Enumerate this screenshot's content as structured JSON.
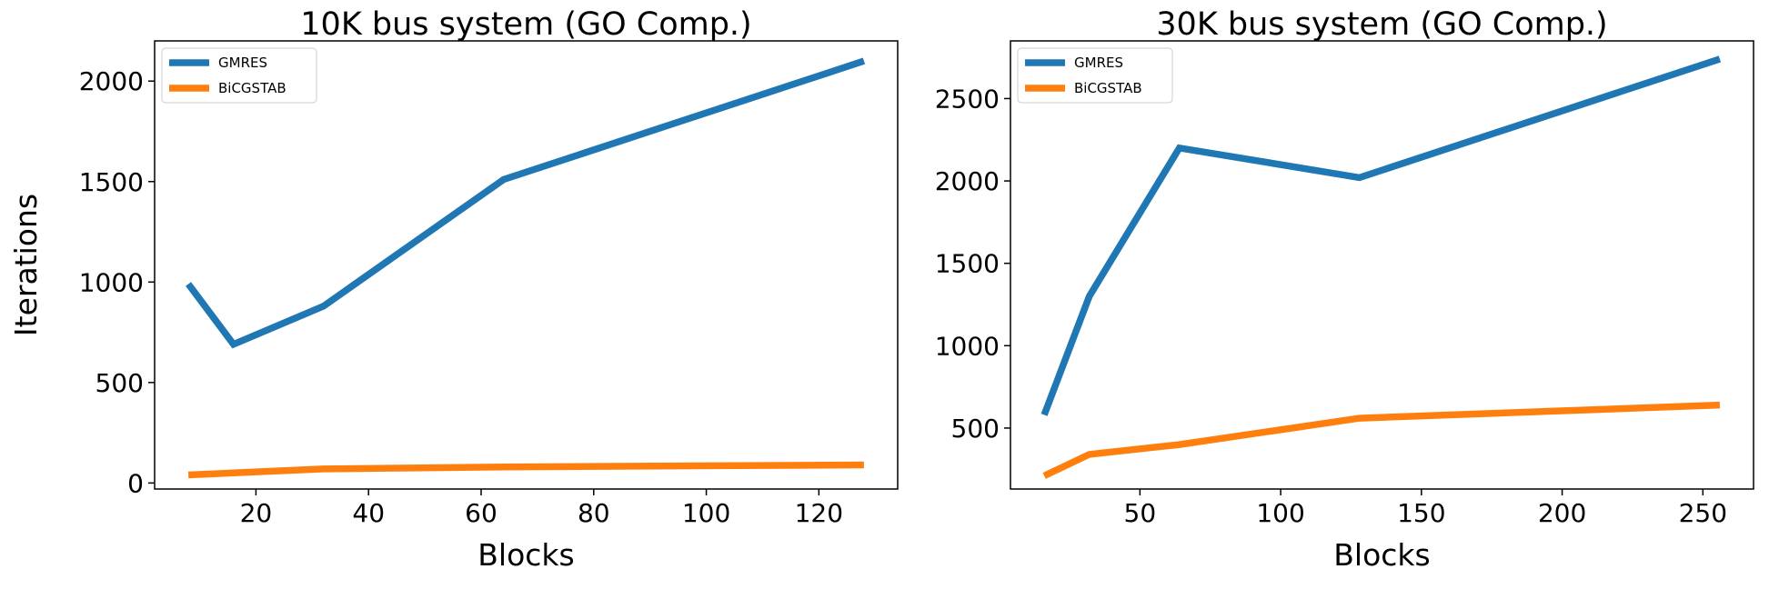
{
  "chart_data": [
    {
      "type": "line",
      "title": "10K bus system (GO Comp.)",
      "xlabel": "Blocks",
      "ylabel": "Iterations",
      "xlim": [
        2,
        134
      ],
      "ylim": [
        -30,
        2200
      ],
      "xticks": [
        20,
        40,
        60,
        80,
        100,
        120
      ],
      "yticks": [
        0,
        500,
        1000,
        1500,
        2000
      ],
      "grid": false,
      "legend_position": "top-left",
      "series": [
        {
          "name": "GMRES",
          "color": "#1f77b4",
          "x": [
            8,
            16,
            32,
            64,
            128
          ],
          "y": [
            990,
            690,
            880,
            1510,
            2100
          ]
        },
        {
          "name": "BiCGSTAB",
          "color": "#ff7f0e",
          "x": [
            8,
            16,
            32,
            64,
            128
          ],
          "y": [
            40,
            50,
            70,
            80,
            90
          ]
        }
      ]
    },
    {
      "type": "line",
      "title": "30K bus system (GO Comp.)",
      "xlabel": "Blocks",
      "ylabel": "",
      "xlim": [
        4,
        268
      ],
      "ylim": [
        130,
        2850
      ],
      "xticks": [
        50,
        100,
        150,
        200,
        250
      ],
      "yticks": [
        500,
        1000,
        1500,
        2000,
        2500
      ],
      "grid": false,
      "legend_position": "top-left",
      "series": [
        {
          "name": "GMRES",
          "color": "#1f77b4",
          "x": [
            16,
            32,
            64,
            128,
            256
          ],
          "y": [
            580,
            1300,
            2200,
            2020,
            2740
          ]
        },
        {
          "name": "BiCGSTAB",
          "color": "#ff7f0e",
          "x": [
            16,
            32,
            64,
            128,
            256
          ],
          "y": [
            210,
            340,
            400,
            560,
            640
          ]
        }
      ]
    }
  ]
}
